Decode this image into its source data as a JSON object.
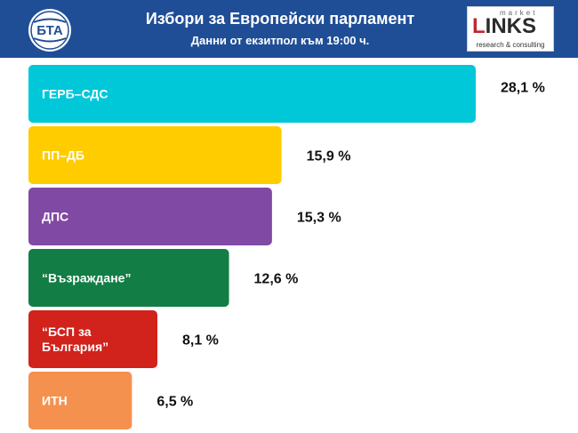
{
  "header": {
    "title": "Избори за Европейски парламент",
    "subtitle": "Данни от екзитпол към 19:00 ч.",
    "logo_left_text": "БТА",
    "logo_right_top": "market",
    "logo_right_main": "LINKS",
    "logo_right_tagline": "research & consulting",
    "background_color": "#1f4e96"
  },
  "chart_data": {
    "type": "bar",
    "orientation": "horizontal",
    "title": "Избори за Европейски парламент",
    "subtitle": "Данни от екзитпол към 19:00 ч.",
    "xlim": [
      0,
      28.1
    ],
    "grid": false,
    "categories": [
      [
        "ГЕРБ–СДС"
      ],
      [
        "ПП–ДБ"
      ],
      [
        "ДПС"
      ],
      [
        "“Възраждане”"
      ],
      [
        "“БСП за",
        "България”"
      ],
      [
        "ИТН"
      ]
    ],
    "values": [
      28.1,
      15.9,
      15.3,
      12.6,
      8.1,
      6.5
    ],
    "value_labels": [
      "28,1 %",
      "15,9 %",
      "15,3 %",
      "12,6 %",
      "8,1 %",
      "6,5 %"
    ],
    "colors": [
      "#00c8d8",
      "#ffcc00",
      "#8049a3",
      "#127d45",
      "#d1221b",
      "#f5914f"
    ]
  }
}
